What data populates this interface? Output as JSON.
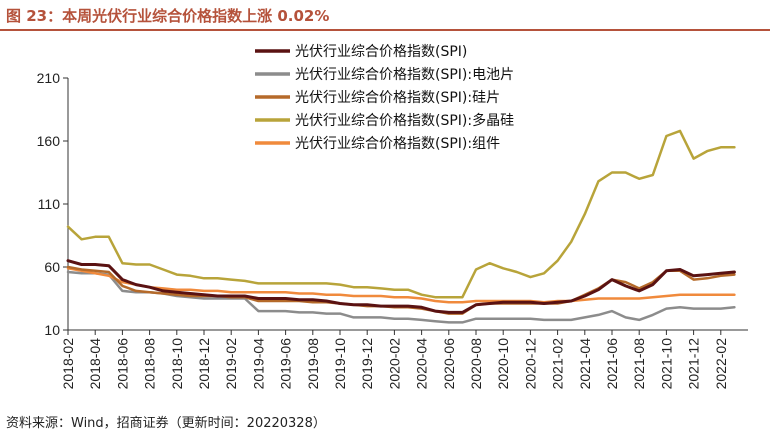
{
  "header": {
    "title": "图 23：本周光伏行业综合价格指数上涨 0.02%"
  },
  "footer": {
    "source": "资料来源：Wind，招商证券（更新时间：20220328）"
  },
  "chart_data": {
    "type": "line",
    "title": "",
    "xlabel": "",
    "ylabel": "",
    "ylim": [
      10,
      210
    ],
    "yticks": [
      10,
      60,
      110,
      160,
      210
    ],
    "xlim": [
      "2018-02",
      "2022-04"
    ],
    "xticks": [
      "2018-02",
      "2018-04",
      "2018-06",
      "2018-08",
      "2018-10",
      "2018-12",
      "2019-02",
      "2019-04",
      "2019-06",
      "2019-08",
      "2019-10",
      "2019-12",
      "2020-02",
      "2020-04",
      "2020-06",
      "2020-08",
      "2020-10",
      "2020-12",
      "2021-02",
      "2021-04",
      "2021-06",
      "2021-08",
      "2021-10",
      "2021-12",
      "2022-02"
    ],
    "grid": false,
    "legend_position": "top-center",
    "series": [
      {
        "name": "光伏行业综合价格指数(SPI)",
        "color": "#5a1212",
        "x": [
          "2018-02",
          "2018-03",
          "2018-04",
          "2018-05",
          "2018-06",
          "2018-07",
          "2018-08",
          "2018-09",
          "2018-10",
          "2018-11",
          "2018-12",
          "2019-01",
          "2019-02",
          "2019-03",
          "2019-04",
          "2019-05",
          "2019-06",
          "2019-07",
          "2019-08",
          "2019-09",
          "2019-10",
          "2019-11",
          "2019-12",
          "2020-01",
          "2020-02",
          "2020-03",
          "2020-04",
          "2020-05",
          "2020-06",
          "2020-07",
          "2020-08",
          "2020-09",
          "2020-10",
          "2020-11",
          "2020-12",
          "2021-01",
          "2021-02",
          "2021-03",
          "2021-04",
          "2021-05",
          "2021-06",
          "2021-07",
          "2021-08",
          "2021-09",
          "2021-10",
          "2021-11",
          "2021-12",
          "2022-01",
          "2022-02",
          "2022-03"
        ],
        "values": [
          65,
          62,
          62,
          61,
          50,
          46,
          44,
          41,
          40,
          39,
          38,
          37,
          37,
          37,
          35,
          35,
          35,
          34,
          34,
          33,
          31,
          30,
          30,
          29,
          29,
          29,
          28,
          25,
          24,
          24,
          30,
          31,
          32,
          32,
          32,
          31,
          32,
          33,
          37,
          42,
          50,
          45,
          41,
          46,
          57,
          58,
          53,
          54,
          55,
          56
        ]
      },
      {
        "name": "光伏行业综合价格指数(SPI):电池片",
        "color": "#8c8c8c",
        "x": [
          "2018-02",
          "2018-03",
          "2018-04",
          "2018-05",
          "2018-06",
          "2018-07",
          "2018-08",
          "2018-09",
          "2018-10",
          "2018-11",
          "2018-12",
          "2019-01",
          "2019-02",
          "2019-03",
          "2019-04",
          "2019-05",
          "2019-06",
          "2019-07",
          "2019-08",
          "2019-09",
          "2019-10",
          "2019-11",
          "2019-12",
          "2020-01",
          "2020-02",
          "2020-03",
          "2020-04",
          "2020-05",
          "2020-06",
          "2020-07",
          "2020-08",
          "2020-09",
          "2020-10",
          "2020-11",
          "2020-12",
          "2021-01",
          "2021-02",
          "2021-03",
          "2021-04",
          "2021-05",
          "2021-06",
          "2021-07",
          "2021-08",
          "2021-09",
          "2021-10",
          "2021-11",
          "2021-12",
          "2022-01",
          "2022-02",
          "2022-03"
        ],
        "values": [
          56,
          55,
          55,
          54,
          41,
          40,
          40,
          39,
          37,
          36,
          35,
          35,
          35,
          35,
          25,
          25,
          25,
          24,
          24,
          23,
          23,
          20,
          20,
          20,
          19,
          19,
          18,
          17,
          16,
          16,
          19,
          19,
          19,
          19,
          19,
          18,
          18,
          18,
          20,
          22,
          25,
          20,
          18,
          22,
          27,
          28,
          27,
          27,
          27,
          28
        ]
      },
      {
        "name": "光伏行业综合价格指数(SPI):硅片",
        "color": "#b56a2a",
        "x": [
          "2018-02",
          "2018-03",
          "2018-04",
          "2018-05",
          "2018-06",
          "2018-07",
          "2018-08",
          "2018-09",
          "2018-10",
          "2018-11",
          "2018-12",
          "2019-01",
          "2019-02",
          "2019-03",
          "2019-04",
          "2019-05",
          "2019-06",
          "2019-07",
          "2019-08",
          "2019-09",
          "2019-10",
          "2019-11",
          "2019-12",
          "2020-01",
          "2020-02",
          "2020-03",
          "2020-04",
          "2020-05",
          "2020-06",
          "2020-07",
          "2020-08",
          "2020-09",
          "2020-10",
          "2020-11",
          "2020-12",
          "2021-01",
          "2021-02",
          "2021-03",
          "2021-04",
          "2021-05",
          "2021-06",
          "2021-07",
          "2021-08",
          "2021-09",
          "2021-10",
          "2021-11",
          "2021-12",
          "2022-01",
          "2022-02",
          "2022-03"
        ],
        "values": [
          60,
          58,
          57,
          56,
          45,
          41,
          40,
          39,
          38,
          37,
          37,
          37,
          36,
          36,
          33,
          33,
          33,
          33,
          32,
          32,
          31,
          30,
          29,
          29,
          28,
          28,
          27,
          25,
          23,
          23,
          30,
          31,
          31,
          31,
          31,
          31,
          31,
          33,
          38,
          43,
          50,
          48,
          43,
          48,
          57,
          57,
          50,
          51,
          53,
          54
        ]
      },
      {
        "name": "光伏行业综合价格指数(SPI):多晶硅",
        "color": "#b8a43a",
        "x": [
          "2018-02",
          "2018-03",
          "2018-04",
          "2018-05",
          "2018-06",
          "2018-07",
          "2018-08",
          "2018-09",
          "2018-10",
          "2018-11",
          "2018-12",
          "2019-01",
          "2019-02",
          "2019-03",
          "2019-04",
          "2019-05",
          "2019-06",
          "2019-07",
          "2019-08",
          "2019-09",
          "2019-10",
          "2019-11",
          "2019-12",
          "2020-01",
          "2020-02",
          "2020-03",
          "2020-04",
          "2020-05",
          "2020-06",
          "2020-07",
          "2020-08",
          "2020-09",
          "2020-10",
          "2020-11",
          "2020-12",
          "2021-01",
          "2021-02",
          "2021-03",
          "2021-04",
          "2021-05",
          "2021-06",
          "2021-07",
          "2021-08",
          "2021-09",
          "2021-10",
          "2021-11",
          "2021-12",
          "2022-01",
          "2022-02",
          "2022-03"
        ],
        "values": [
          92,
          82,
          84,
          84,
          63,
          62,
          62,
          58,
          54,
          53,
          51,
          51,
          50,
          49,
          47,
          47,
          47,
          47,
          47,
          47,
          46,
          44,
          44,
          43,
          42,
          42,
          38,
          36,
          36,
          36,
          58,
          63,
          59,
          56,
          52,
          55,
          65,
          80,
          102,
          128,
          135,
          135,
          130,
          133,
          164,
          168,
          146,
          152,
          155,
          155
        ]
      },
      {
        "name": "光伏行业综合价格指数(SPI):组件",
        "color": "#f08a3c",
        "x": [
          "2018-02",
          "2018-03",
          "2018-04",
          "2018-05",
          "2018-06",
          "2018-07",
          "2018-08",
          "2018-09",
          "2018-10",
          "2018-11",
          "2018-12",
          "2019-01",
          "2019-02",
          "2019-03",
          "2019-04",
          "2019-05",
          "2019-06",
          "2019-07",
          "2019-08",
          "2019-09",
          "2019-10",
          "2019-11",
          "2019-12",
          "2020-01",
          "2020-02",
          "2020-03",
          "2020-04",
          "2020-05",
          "2020-06",
          "2020-07",
          "2020-08",
          "2020-09",
          "2020-10",
          "2020-11",
          "2020-12",
          "2021-01",
          "2021-02",
          "2021-03",
          "2021-04",
          "2021-05",
          "2021-06",
          "2021-07",
          "2021-08",
          "2021-09",
          "2021-10",
          "2021-11",
          "2021-12",
          "2022-01",
          "2022-02",
          "2022-03"
        ],
        "values": [
          59,
          57,
          55,
          53,
          48,
          46,
          44,
          43,
          42,
          42,
          41,
          41,
          40,
          40,
          40,
          40,
          40,
          39,
          39,
          38,
          38,
          37,
          37,
          37,
          36,
          36,
          35,
          33,
          32,
          32,
          33,
          33,
          33,
          33,
          33,
          32,
          33,
          33,
          34,
          35,
          35,
          35,
          35,
          36,
          37,
          38,
          38,
          38,
          38,
          38
        ]
      }
    ]
  }
}
